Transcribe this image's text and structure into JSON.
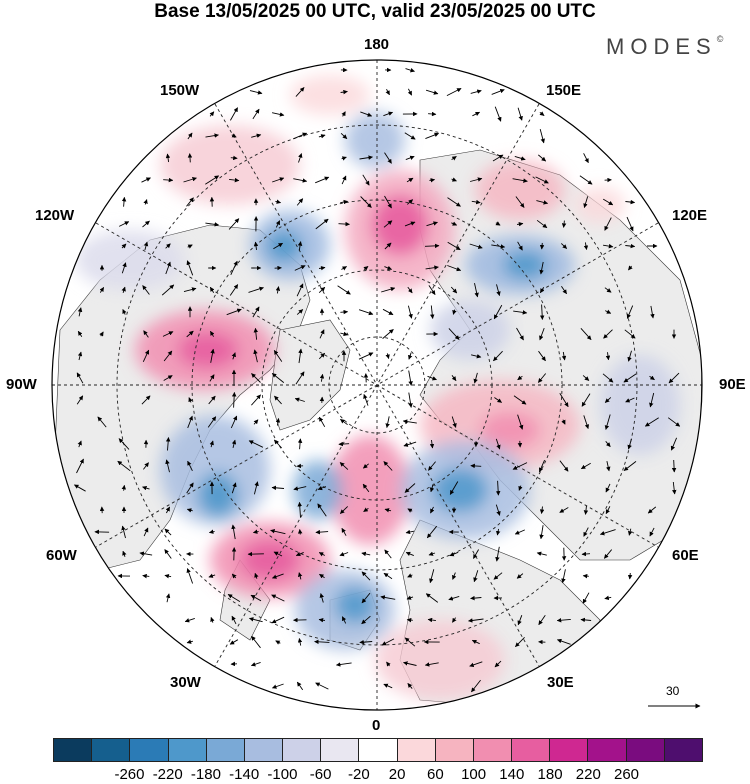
{
  "header": {
    "title": "Base 13/05/2025 00 UTC, valid 23/05/2025 00 UTC",
    "brand": "MODES",
    "brand_mark": "©"
  },
  "map": {
    "projection": "north-polar-stereographic",
    "longitude_labels": {
      "top": "180",
      "bottom": "0",
      "left": "90W",
      "right": "90E",
      "upper_left_1": "150W",
      "upper_left_2": "120W",
      "upper_right_1": "150E",
      "upper_right_2": "120E",
      "lower_left_1": "60W",
      "lower_left_2": "30W",
      "lower_right_1": "60E",
      "lower_right_2": "30E"
    },
    "vector_scale_label": "30",
    "positive_color": "#e8508f",
    "negative_color": "#4f81bd",
    "land_color": "#ececec"
  },
  "colorbar": {
    "colors": [
      "#0b3b5e",
      "#155f8e",
      "#2b7bb6",
      "#4e98cb",
      "#7aa9d6",
      "#a8bde0",
      "#cdd1e8",
      "#e9e7f1",
      "#ffffff",
      "#fbd8db",
      "#f6b4c0",
      "#f18eb0",
      "#e75ea0",
      "#cf2891",
      "#a3128b",
      "#7a0c7f",
      "#4e0e6e"
    ],
    "tick_labels": [
      "-260",
      "-220",
      "-180",
      "-140",
      "-100",
      "-60",
      "-20",
      "20",
      "60",
      "100",
      "140",
      "180",
      "220",
      "260"
    ]
  }
}
